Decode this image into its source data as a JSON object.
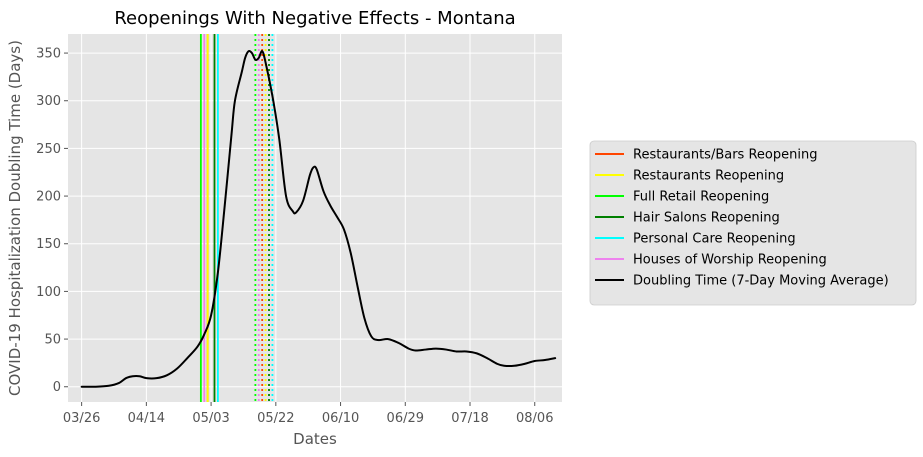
{
  "chart_data": {
    "type": "line",
    "title": "Reopenings With Negative Effects - Montana",
    "xlabel": "Dates",
    "ylabel": "COVID-19 Hospitalization Doubling Time (Days)",
    "x_tick_labels": [
      "03/26",
      "04/14",
      "05/03",
      "05/22",
      "06/10",
      "06/29",
      "07/18",
      "08/06"
    ],
    "x_ticks": [
      "2020-03-26",
      "2020-04-14",
      "2020-05-03",
      "2020-05-22",
      "2020-06-10",
      "2020-06-29",
      "2020-07-18",
      "2020-08-06"
    ],
    "xlim": [
      "2020-03-22",
      "2020-08-14"
    ],
    "y_ticks": [
      0,
      50,
      100,
      150,
      200,
      250,
      300,
      350
    ],
    "ylim": [
      -16,
      370
    ],
    "grid": true,
    "legend_position": "right",
    "legend": [
      {
        "label": "Restaurants/Bars Reopening",
        "color": "#ff4500"
      },
      {
        "label": "Restaurants Reopening",
        "color": "#ffff00"
      },
      {
        "label": "Full Retail Reopening",
        "color": "#00ff00"
      },
      {
        "label": "Hair Salons Reopening",
        "color": "#008000"
      },
      {
        "label": "Personal Care Reopening",
        "color": "#00ffff"
      },
      {
        "label": "Houses of Worship Reopening",
        "color": "#ee82ee"
      },
      {
        "label": "Doubling Time (7-Day Moving Average)",
        "color": "#000000"
      }
    ],
    "vertical_lines": [
      {
        "date": "2020-04-30",
        "color": "#00ff00",
        "style": "solid"
      },
      {
        "date": "2020-05-01",
        "color": "#ee82ee",
        "style": "solid"
      },
      {
        "date": "2020-05-02",
        "color": "#ff4500",
        "style": "solid"
      },
      {
        "date": "2020-05-02",
        "color": "#ffff00",
        "style": "solid"
      },
      {
        "date": "2020-05-04",
        "color": "#008000",
        "style": "solid"
      },
      {
        "date": "2020-05-05",
        "color": "#00ffff",
        "style": "solid"
      },
      {
        "date": "2020-05-16",
        "color": "#00ff00",
        "style": "dotted"
      },
      {
        "date": "2020-05-17",
        "color": "#ee82ee",
        "style": "dotted"
      },
      {
        "date": "2020-05-18",
        "color": "#ff4500",
        "style": "dotted"
      },
      {
        "date": "2020-05-19",
        "color": "#ffff00",
        "style": "dotted"
      },
      {
        "date": "2020-05-20",
        "color": "#008000",
        "style": "dotted"
      },
      {
        "date": "2020-05-21",
        "color": "#00ffff",
        "style": "dotted"
      }
    ],
    "series": [
      {
        "name": "Doubling Time (7-Day Moving Average)",
        "color": "#000000",
        "points": [
          [
            "2020-03-26",
            0
          ],
          [
            "2020-03-30",
            0
          ],
          [
            "2020-04-03",
            1
          ],
          [
            "2020-04-06",
            4
          ],
          [
            "2020-04-08",
            9
          ],
          [
            "2020-04-10",
            11
          ],
          [
            "2020-04-12",
            11
          ],
          [
            "2020-04-14",
            9
          ],
          [
            "2020-04-17",
            9
          ],
          [
            "2020-04-20",
            12
          ],
          [
            "2020-04-23",
            19
          ],
          [
            "2020-04-26",
            30
          ],
          [
            "2020-04-29",
            42
          ],
          [
            "2020-05-01",
            55
          ],
          [
            "2020-05-03",
            75
          ],
          [
            "2020-05-05",
            120
          ],
          [
            "2020-05-07",
            190
          ],
          [
            "2020-05-09",
            265
          ],
          [
            "2020-05-10",
            300
          ],
          [
            "2020-05-12",
            330
          ],
          [
            "2020-05-13",
            345
          ],
          [
            "2020-05-14",
            352
          ],
          [
            "2020-05-15",
            350
          ],
          [
            "2020-05-16",
            343
          ],
          [
            "2020-05-17",
            345
          ],
          [
            "2020-05-18",
            352
          ],
          [
            "2020-05-19",
            340
          ],
          [
            "2020-05-21",
            305
          ],
          [
            "2020-05-23",
            260
          ],
          [
            "2020-05-25",
            200
          ],
          [
            "2020-05-27",
            184
          ],
          [
            "2020-05-28",
            183
          ],
          [
            "2020-05-30",
            195
          ],
          [
            "2020-06-01",
            222
          ],
          [
            "2020-06-02",
            230
          ],
          [
            "2020-06-03",
            228
          ],
          [
            "2020-06-05",
            205
          ],
          [
            "2020-06-07",
            190
          ],
          [
            "2020-06-09",
            178
          ],
          [
            "2020-06-11",
            165
          ],
          [
            "2020-06-13",
            140
          ],
          [
            "2020-06-15",
            105
          ],
          [
            "2020-06-17",
            72
          ],
          [
            "2020-06-19",
            53
          ],
          [
            "2020-06-21",
            49
          ],
          [
            "2020-06-24",
            50
          ],
          [
            "2020-06-27",
            46
          ],
          [
            "2020-06-30",
            40
          ],
          [
            "2020-07-02",
            38
          ],
          [
            "2020-07-05",
            39
          ],
          [
            "2020-07-08",
            40
          ],
          [
            "2020-07-11",
            39
          ],
          [
            "2020-07-14",
            37
          ],
          [
            "2020-07-17",
            37
          ],
          [
            "2020-07-20",
            35
          ],
          [
            "2020-07-23",
            30
          ],
          [
            "2020-07-26",
            24
          ],
          [
            "2020-07-28",
            22
          ],
          [
            "2020-07-31",
            22
          ],
          [
            "2020-08-03",
            24
          ],
          [
            "2020-08-06",
            27
          ],
          [
            "2020-08-09",
            28
          ],
          [
            "2020-08-12",
            30
          ]
        ]
      }
    ]
  }
}
